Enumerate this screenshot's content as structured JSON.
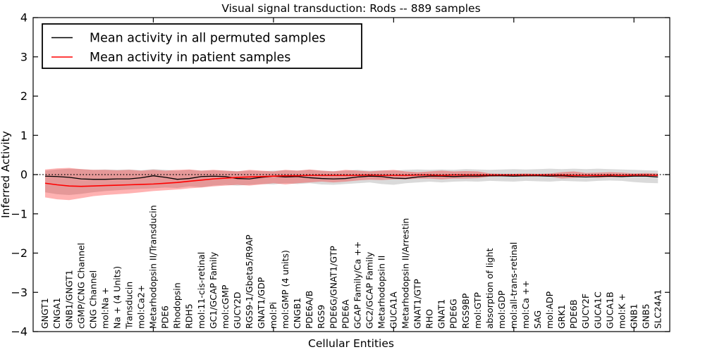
{
  "chart_data": {
    "type": "line",
    "title": "Visual signal transduction: Rods -- 889 samples",
    "xlabel": "Cellular Entities",
    "ylabel": "Inferred Activity",
    "ylim": [
      -4,
      4
    ],
    "yticks": [
      4,
      3,
      2,
      1,
      0,
      -1,
      -2,
      -3,
      -4
    ],
    "grid": false,
    "legend_position": "upper left",
    "zero_line": {
      "y": 0,
      "style": "dotted",
      "color": "#000000"
    },
    "categories": [
      "GNGT1",
      "CNGA1",
      "GNB1/GNGT1",
      "cGMP/CNG Channel",
      "CNG Channel",
      "mol:Na +",
      "Na + (4 Units)",
      "Transducin",
      "mol:Ca2+",
      "Metarhodopsin II/Transducin",
      "PDE6",
      "Rhodopsin",
      "RDH5",
      "mol:11-cis-retinal",
      "GC1/GCAP Family",
      "mol:cGMP",
      "GUCY2D",
      "RGS9-1/Gbeta5/R9AP",
      "GNAT1/GDP",
      "mol:Pi",
      "mol:GMP (4 units)",
      "CNGB1",
      "PDE6A/B",
      "RGS9",
      "PDE6G/GNAT1/GTP",
      "PDE6A",
      "GCAP Family/Ca ++",
      "GC2/GCAP Family",
      "Metarhodopsin II",
      "GUCA1A",
      "Metarhodopsin II/Arrestin",
      "GNAT1/GTP",
      "RHO",
      "GNAT1",
      "PDE6G",
      "RGS9BP",
      "mol:GTP",
      "absorption of light",
      "mol:GDP",
      "mol:all-trans-retinal",
      "mol:Ca ++",
      "SAG",
      "mol:ADP",
      "GRK1",
      "PDE6B",
      "GUCY2F",
      "GUCA1C",
      "GUCA1B",
      "mol:K +",
      "GNB1",
      "GNB5",
      "SLC24A1"
    ],
    "series": [
      {
        "name": "Mean activity in all permuted samples",
        "color": "#000000",
        "line_width": 1.3,
        "band_fill": "rgba(140,140,140,0.32)",
        "values": [
          -0.04,
          -0.05,
          -0.07,
          -0.11,
          -0.12,
          -0.12,
          -0.11,
          -0.11,
          -0.08,
          -0.03,
          -0.07,
          -0.12,
          -0.1,
          -0.05,
          -0.04,
          -0.05,
          -0.1,
          -0.11,
          -0.07,
          -0.04,
          -0.06,
          -0.05,
          -0.08,
          -0.1,
          -0.11,
          -0.1,
          -0.06,
          -0.04,
          -0.05,
          -0.09,
          -0.1,
          -0.06,
          -0.04,
          -0.04,
          -0.05,
          -0.04,
          -0.04,
          -0.03,
          -0.03,
          -0.04,
          -0.03,
          -0.03,
          -0.04,
          -0.03,
          -0.05,
          -0.06,
          -0.05,
          -0.04,
          -0.05,
          -0.04,
          -0.04,
          -0.06
        ],
        "band_upper": [
          0.1,
          0.13,
          0.15,
          0.14,
          0.12,
          0.13,
          0.12,
          0.13,
          0.11,
          0.14,
          0.12,
          0.1,
          0.12,
          0.1,
          0.11,
          0.1,
          0.09,
          0.1,
          0.09,
          0.1,
          0.11,
          0.1,
          0.12,
          0.1,
          0.09,
          0.1,
          0.12,
          0.1,
          0.11,
          0.1,
          0.12,
          0.13,
          0.12,
          0.13,
          0.12,
          0.14,
          0.13,
          0.12,
          0.13,
          0.14,
          0.13,
          0.14,
          0.15,
          0.14,
          0.15,
          0.14,
          0.15,
          0.14,
          0.13,
          0.12,
          0.11,
          0.1
        ],
        "band_lower": [
          -0.45,
          -0.5,
          -0.52,
          -0.49,
          -0.45,
          -0.42,
          -0.4,
          -0.38,
          -0.36,
          -0.35,
          -0.33,
          -0.34,
          -0.3,
          -0.32,
          -0.28,
          -0.26,
          -0.28,
          -0.26,
          -0.24,
          -0.25,
          -0.22,
          -0.24,
          -0.22,
          -0.25,
          -0.26,
          -0.24,
          -0.22,
          -0.2,
          -0.24,
          -0.26,
          -0.22,
          -0.2,
          -0.18,
          -0.2,
          -0.18,
          -0.17,
          -0.18,
          -0.16,
          -0.17,
          -0.18,
          -0.16,
          -0.17,
          -0.18,
          -0.16,
          -0.17,
          -0.18,
          -0.16,
          -0.15,
          -0.16,
          -0.19,
          -0.21,
          -0.22
        ]
      },
      {
        "name": "Mean activity in patient samples",
        "color": "#ff0000",
        "line_width": 1.6,
        "band_fill": "rgba(255,0,0,0.30)",
        "values": [
          -0.22,
          -0.26,
          -0.29,
          -0.3,
          -0.29,
          -0.28,
          -0.27,
          -0.26,
          -0.25,
          -0.24,
          -0.22,
          -0.2,
          -0.17,
          -0.14,
          -0.11,
          -0.09,
          -0.07,
          -0.06,
          -0.05,
          -0.04,
          -0.03,
          -0.03,
          -0.02,
          -0.02,
          -0.02,
          -0.02,
          -0.02,
          -0.01,
          -0.02,
          -0.02,
          -0.02,
          -0.01,
          -0.01,
          -0.02,
          -0.01,
          -0.01,
          -0.01,
          -0.01,
          -0.01,
          -0.01,
          -0.01,
          -0.01,
          -0.01,
          -0.01,
          -0.02,
          -0.02,
          -0.02,
          -0.01,
          -0.02,
          -0.01,
          -0.01,
          -0.02
        ],
        "band_upper": [
          0.13,
          0.16,
          0.17,
          0.14,
          0.12,
          0.12,
          0.11,
          0.12,
          0.1,
          0.12,
          0.1,
          0.12,
          0.13,
          0.1,
          0.12,
          0.1,
          0.08,
          0.12,
          0.1,
          0.08,
          0.12,
          0.1,
          0.13,
          0.1,
          0.08,
          0.12,
          0.1,
          0.08,
          0.1,
          0.12,
          0.08,
          0.06,
          0.08,
          0.1,
          0.08,
          0.09,
          0.08,
          0.03,
          0.02,
          0.02,
          0.03,
          0.02,
          0.03,
          0.06,
          0.08,
          0.04,
          0.05,
          0.06,
          0.05,
          0.03,
          0.04,
          0.03
        ],
        "band_lower": [
          -0.58,
          -0.63,
          -0.65,
          -0.6,
          -0.55,
          -0.52,
          -0.5,
          -0.48,
          -0.45,
          -0.42,
          -0.4,
          -0.38,
          -0.35,
          -0.33,
          -0.3,
          -0.28,
          -0.26,
          -0.28,
          -0.25,
          -0.22,
          -0.25,
          -0.22,
          -0.2,
          -0.18,
          -0.2,
          -0.18,
          -0.15,
          -0.13,
          -0.14,
          -0.12,
          -0.12,
          -0.1,
          -0.1,
          -0.12,
          -0.1,
          -0.1,
          -0.09,
          -0.05,
          -0.04,
          -0.04,
          -0.05,
          -0.04,
          -0.05,
          -0.1,
          -0.08,
          -0.06,
          -0.08,
          -0.07,
          -0.06,
          -0.04,
          -0.05,
          -0.04
        ]
      }
    ]
  },
  "legend": {
    "items": [
      {
        "label": "Mean activity in all permuted samples",
        "color": "#000000"
      },
      {
        "label": "Mean activity in patient samples",
        "color": "#ff0000"
      }
    ]
  }
}
